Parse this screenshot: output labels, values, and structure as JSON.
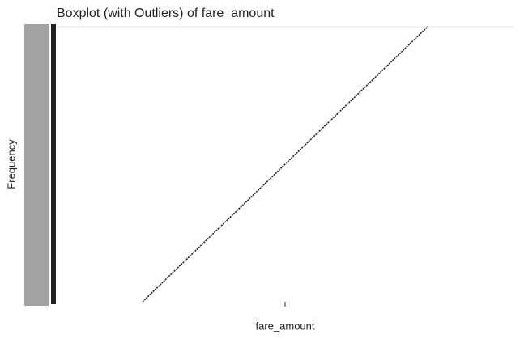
{
  "chart_data": {
    "type": "line",
    "title": "Boxplot (with Outliers) of  fare_amount",
    "x_label": "fare_amount",
    "y_label": "Frequency",
    "x": [
      0,
      1
    ],
    "xlim": [
      0,
      1
    ],
    "ylim": [
      0,
      100
    ],
    "series": [
      {
        "color": "#222222",
        "values": [
          0,
          100
        ]
      }
    ]
  }
}
